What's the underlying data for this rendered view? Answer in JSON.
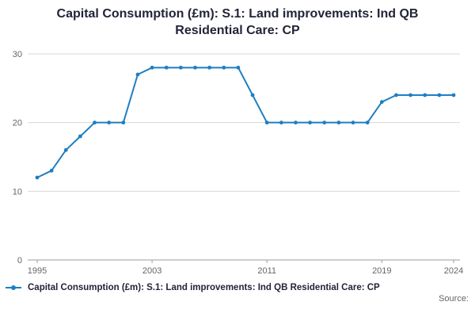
{
  "title": "Capital Consumption (£m): S.1: Land improvements: Ind QB Residential Care: CP",
  "legend": {
    "label": "Capital Consumption (£m): S.1: Land improvements: Ind QB Residential Care: CP"
  },
  "source": "Source:",
  "colors": {
    "line": "#1f7ec2",
    "grid": "#d9d9d9",
    "axis": "#9e9e9e",
    "tick_text": "#666666",
    "title_text": "#222438"
  },
  "chart_data": {
    "type": "line",
    "title": "Capital Consumption (£m): S.1: Land improvements: Ind QB Residential Care: CP",
    "xlabel": "",
    "ylabel": "",
    "legend_position": "bottom",
    "grid": true,
    "ylim": [
      0,
      30
    ],
    "yticks": [
      0,
      10,
      20,
      30
    ],
    "xticks": [
      1995,
      2003,
      2011,
      2019,
      2024
    ],
    "x": [
      1995,
      1996,
      1997,
      1998,
      1999,
      2000,
      2001,
      2002,
      2003,
      2004,
      2005,
      2006,
      2007,
      2008,
      2009,
      2010,
      2011,
      2012,
      2013,
      2014,
      2015,
      2016,
      2017,
      2018,
      2019,
      2020,
      2021,
      2022,
      2023,
      2024
    ],
    "values": [
      12,
      13,
      16,
      18,
      20,
      20,
      20,
      27,
      28,
      28,
      28,
      28,
      28,
      28,
      28,
      24,
      20,
      20,
      20,
      20,
      20,
      20,
      20,
      20,
      23,
      24,
      24,
      24,
      24,
      24
    ]
  }
}
